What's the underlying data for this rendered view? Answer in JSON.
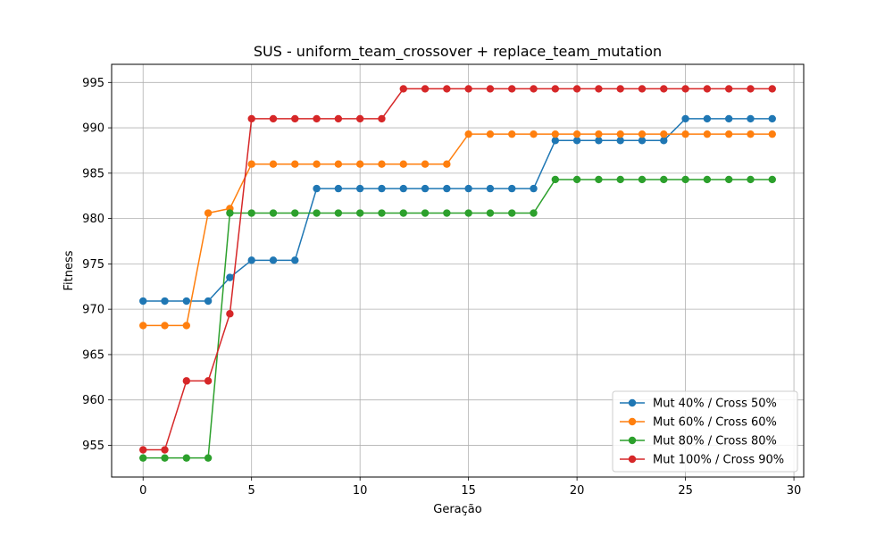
{
  "chart_data": {
    "type": "line",
    "title": "SUS - uniform_team_crossover + replace_team_mutation",
    "xlabel": "Geração",
    "ylabel": "Fitness",
    "xlim": [
      -1.45,
      30.45
    ],
    "ylim": [
      951.5,
      997.0
    ],
    "xticks": [
      0,
      5,
      10,
      15,
      20,
      25,
      30
    ],
    "yticks": [
      955,
      960,
      965,
      970,
      975,
      980,
      985,
      990,
      995
    ],
    "grid": true,
    "legend_position": "lower-right",
    "x": [
      0,
      1,
      2,
      3,
      4,
      5,
      6,
      7,
      8,
      9,
      10,
      11,
      12,
      13,
      14,
      15,
      16,
      17,
      18,
      19,
      20,
      21,
      22,
      23,
      24,
      25,
      26,
      27,
      28,
      29
    ],
    "series": [
      {
        "name": "Mut 40% / Cross 50%",
        "color": "#1f77b4",
        "values": [
          970.9,
          970.9,
          970.9,
          970.9,
          973.5,
          975.4,
          975.4,
          975.4,
          983.3,
          983.3,
          983.3,
          983.3,
          983.3,
          983.3,
          983.3,
          983.3,
          983.3,
          983.3,
          983.3,
          988.6,
          988.6,
          988.6,
          988.6,
          988.6,
          988.6,
          991.0,
          991.0,
          991.0,
          991.0,
          991.0
        ]
      },
      {
        "name": "Mut 60% / Cross 60%",
        "color": "#ff7f0e",
        "values": [
          968.2,
          968.2,
          968.2,
          980.6,
          981.1,
          986.0,
          986.0,
          986.0,
          986.0,
          986.0,
          986.0,
          986.0,
          986.0,
          986.0,
          986.0,
          989.3,
          989.3,
          989.3,
          989.3,
          989.3,
          989.3,
          989.3,
          989.3,
          989.3,
          989.3,
          989.3,
          989.3,
          989.3,
          989.3,
          989.3
        ]
      },
      {
        "name": "Mut 80% / Cross 80%",
        "color": "#2ca02c",
        "values": [
          953.6,
          953.6,
          953.6,
          953.6,
          980.6,
          980.6,
          980.6,
          980.6,
          980.6,
          980.6,
          980.6,
          980.6,
          980.6,
          980.6,
          980.6,
          980.6,
          980.6,
          980.6,
          980.6,
          984.3,
          984.3,
          984.3,
          984.3,
          984.3,
          984.3,
          984.3,
          984.3,
          984.3,
          984.3,
          984.3
        ]
      },
      {
        "name": "Mut 100% / Cross 90%",
        "color": "#d62728",
        "values": [
          954.5,
          954.5,
          962.1,
          962.1,
          969.5,
          991.0,
          991.0,
          991.0,
          991.0,
          991.0,
          991.0,
          991.0,
          994.3,
          994.3,
          994.3,
          994.3,
          994.3,
          994.3,
          994.3,
          994.3,
          994.3,
          994.3,
          994.3,
          994.3,
          994.3,
          994.3,
          994.3,
          994.3,
          994.3,
          994.3
        ]
      }
    ]
  }
}
